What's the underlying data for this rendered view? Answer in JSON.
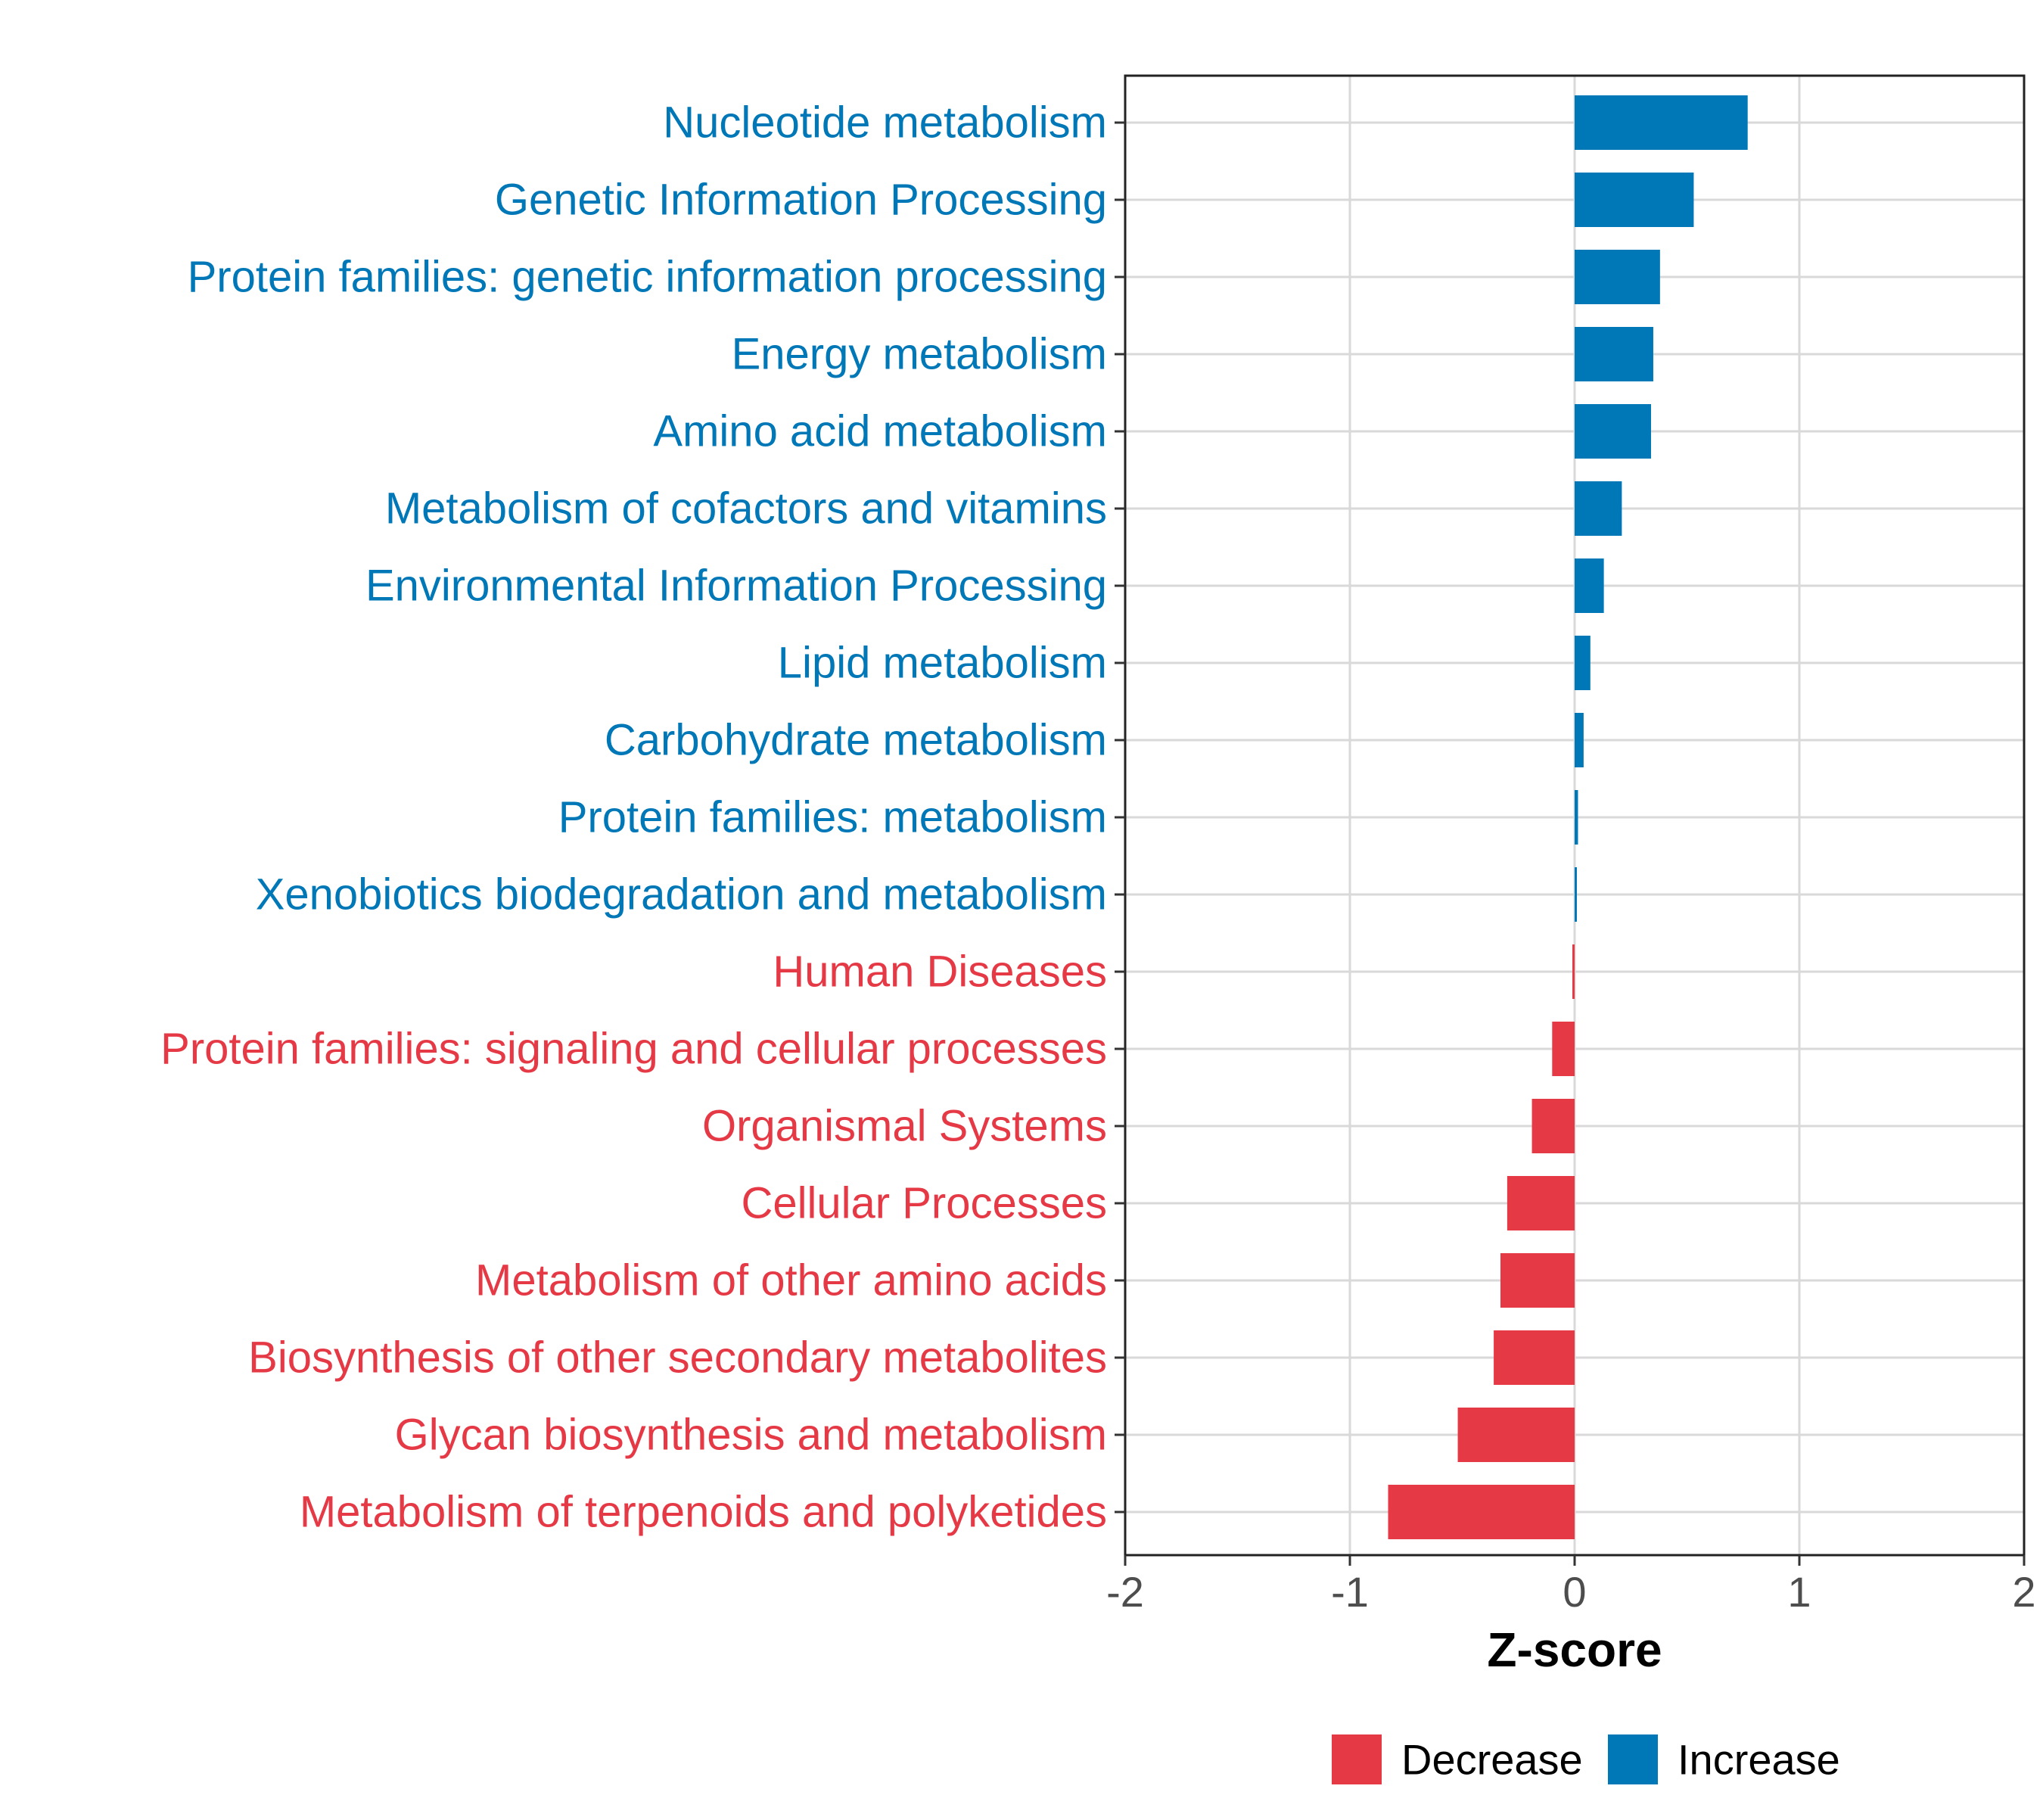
{
  "chart_data": {
    "type": "bar",
    "orientation": "horizontal",
    "title": "",
    "xlabel": "Z-score",
    "ylabel": "",
    "xlim": [
      -2,
      2
    ],
    "xticks": [
      -2,
      -1,
      0,
      1,
      2
    ],
    "xtick_labels": [
      "-2",
      "-1",
      "0",
      "1",
      "2"
    ],
    "grid": true,
    "legend_position": "bottom",
    "colors": {
      "Decrease": "#E63946",
      "Increase": "#0077B6"
    },
    "legend": [
      {
        "label": "Decrease",
        "color": "#E63946"
      },
      {
        "label": "Increase",
        "color": "#0077B6"
      }
    ],
    "categories": [
      "Nucleotide metabolism",
      "Genetic Information Processing",
      "Protein families: genetic information processing",
      "Energy metabolism",
      "Amino acid metabolism",
      "Metabolism of cofactors and vitamins",
      "Environmental Information Processing",
      "Lipid metabolism",
      "Carbohydrate metabolism",
      "Protein families: metabolism",
      "Xenobiotics biodegradation and metabolism",
      "Human Diseases",
      "Protein families: signaling and cellular processes",
      "Organismal Systems",
      "Cellular Processes",
      "Metabolism of other amino acids",
      "Biosynthesis of other secondary metabolites",
      "Glycan biosynthesis and metabolism",
      "Metabolism of terpenoids and polyketides"
    ],
    "values": [
      0.77,
      0.53,
      0.38,
      0.35,
      0.34,
      0.21,
      0.13,
      0.07,
      0.04,
      0.015,
      0.01,
      -0.01,
      -0.1,
      -0.19,
      -0.3,
      -0.33,
      -0.36,
      -0.52,
      -0.83
    ],
    "groups": [
      "Increase",
      "Increase",
      "Increase",
      "Increase",
      "Increase",
      "Increase",
      "Increase",
      "Increase",
      "Increase",
      "Increase",
      "Increase",
      "Decrease",
      "Decrease",
      "Decrease",
      "Decrease",
      "Decrease",
      "Decrease",
      "Decrease",
      "Decrease"
    ]
  }
}
